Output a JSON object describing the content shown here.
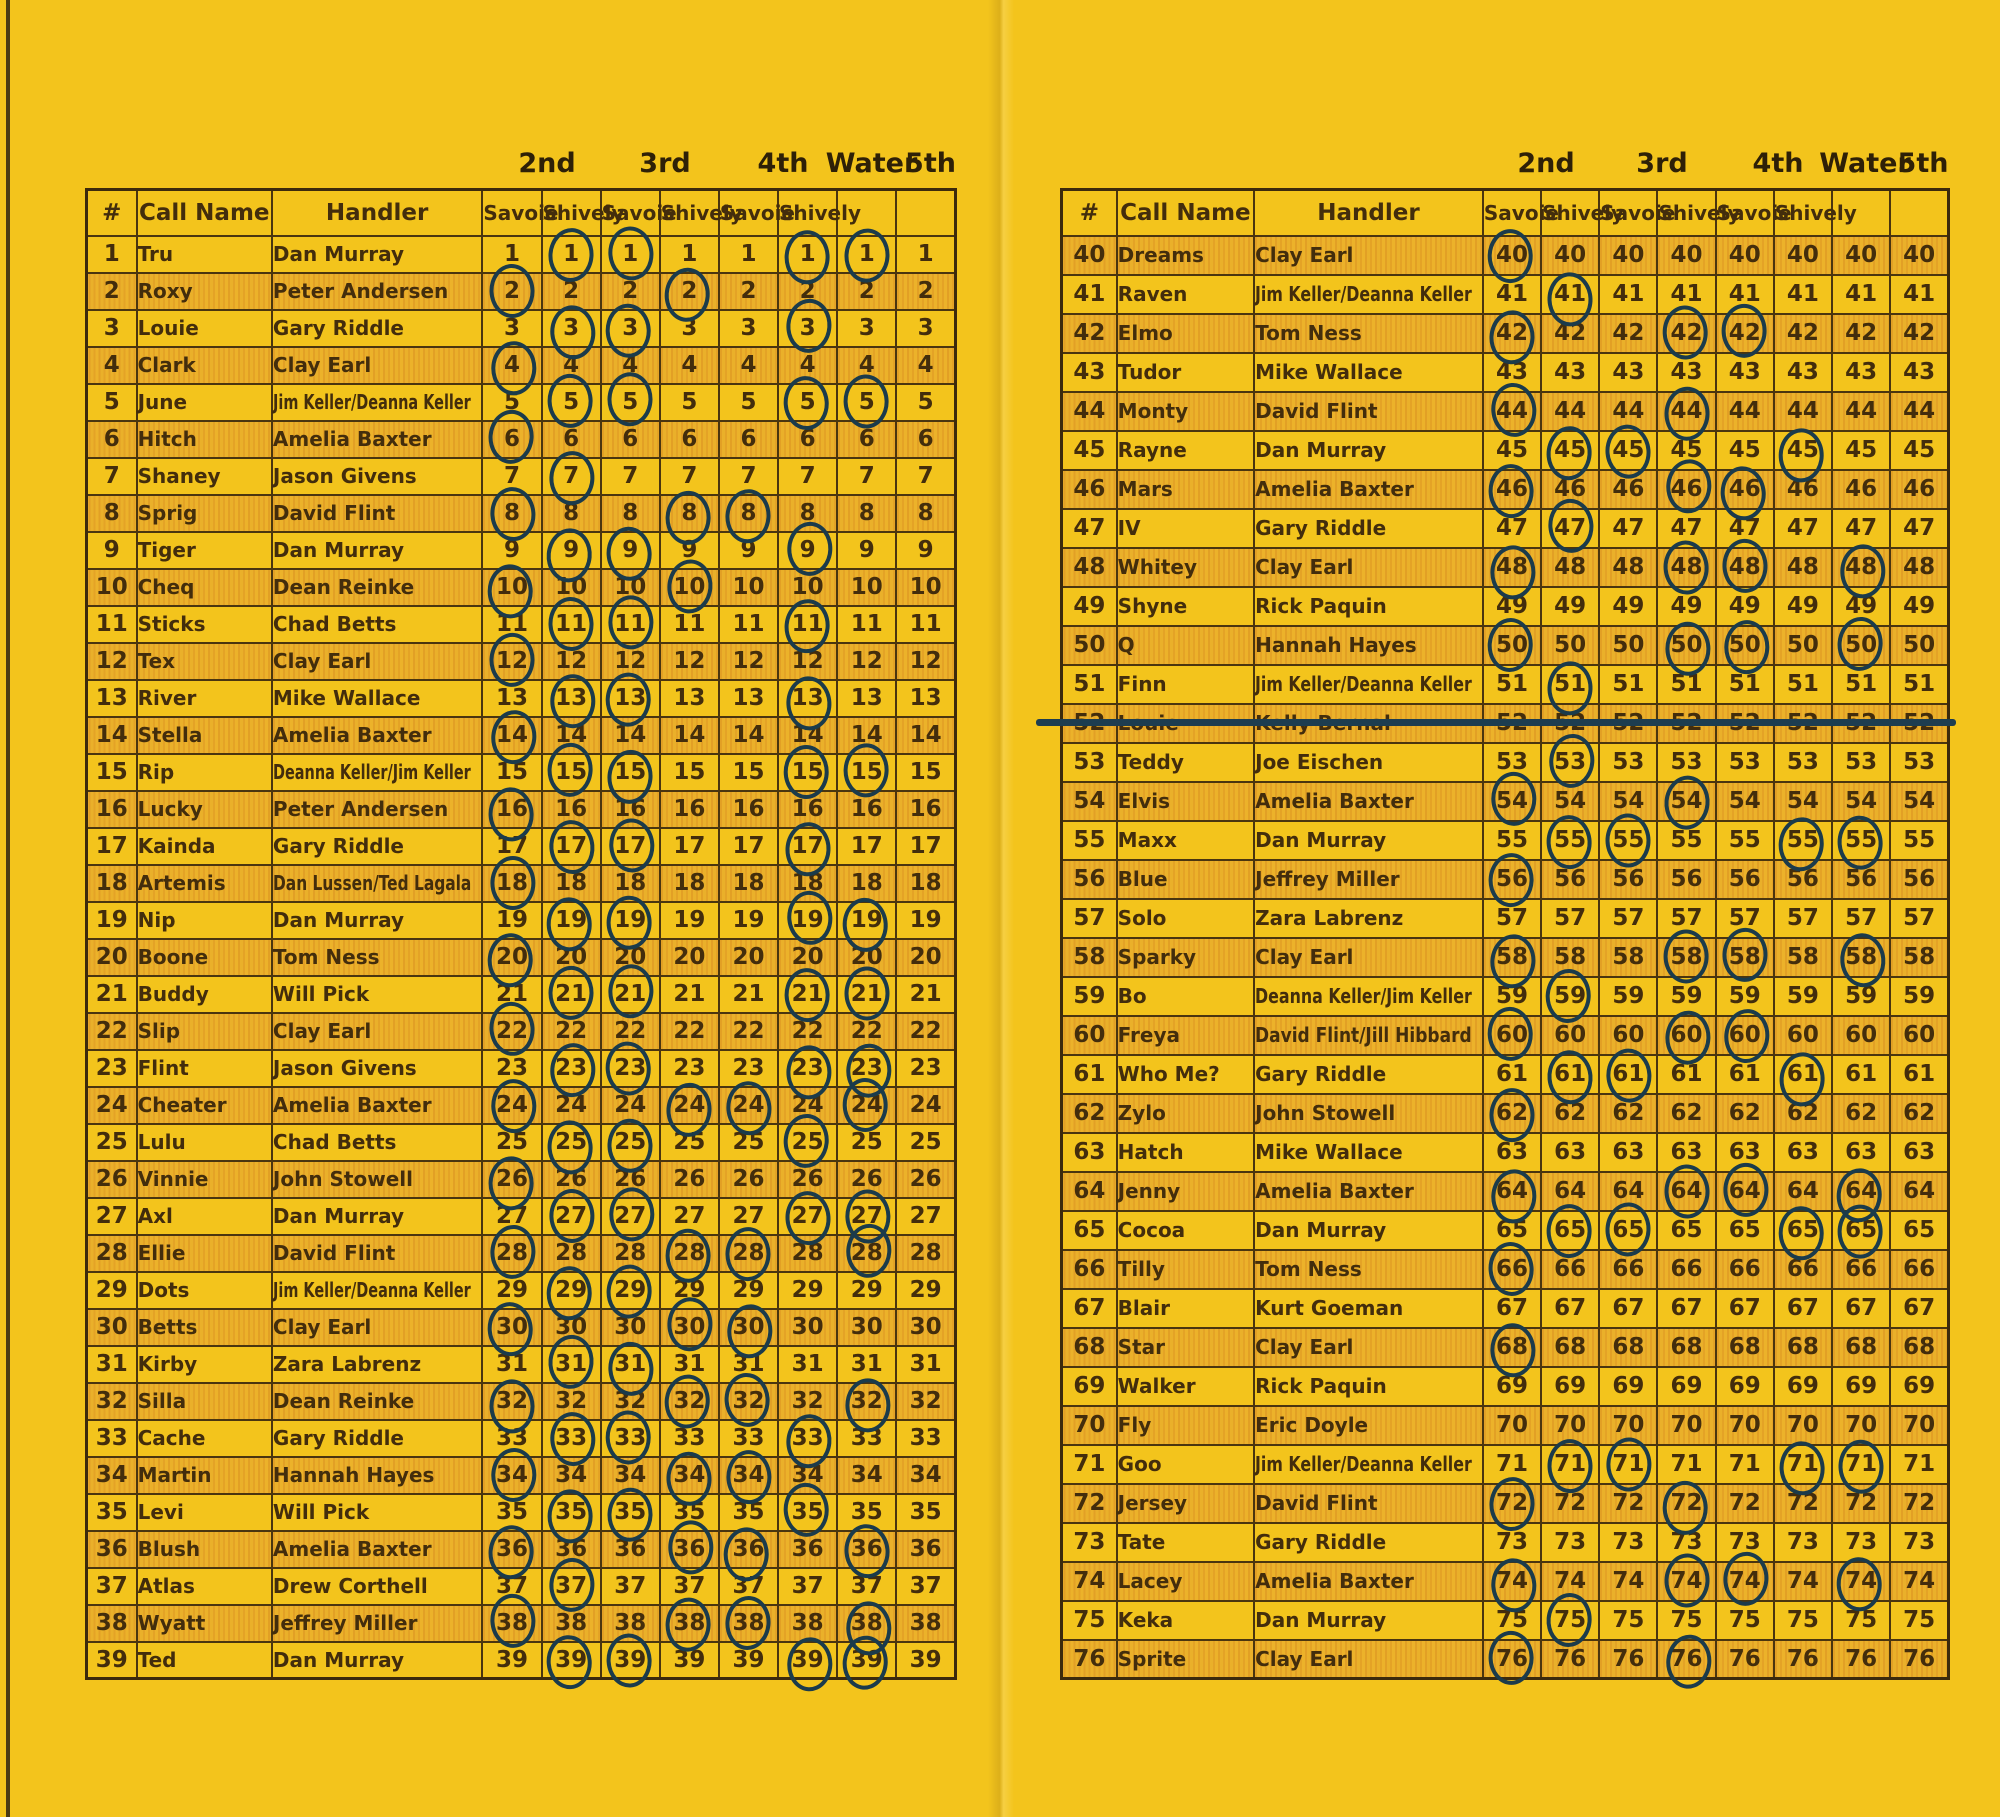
{
  "document_type": "dog trial running-order scoresheet (two pages of a yellow booklet)",
  "colors": {
    "paper": "#F3C41C",
    "stripe_row": "#EDB52B",
    "ink": "#432D0C",
    "pen_circle": "#1B3B4B",
    "grid_line": "#4A350F"
  },
  "round_labels": [
    "2nd",
    "3rd",
    "4th",
    "Water",
    "5th"
  ],
  "column_headers": {
    "num": "#",
    "call_name": "Call Name",
    "handler": "Handler"
  },
  "judge_subheaders": [
    "Savoie",
    "Shively",
    "Savoie",
    "Shively",
    "Savoie",
    "Shively",
    "",
    ""
  ],
  "score_column_keys": [
    "2nd-savoie",
    "2nd-shively",
    "3rd-savoie",
    "3rd-shively",
    "4th-savoie",
    "4th-shively",
    "water",
    "5th"
  ],
  "note": "every score cell shows the dog's running number; 'circles' lists the score-column indexes circled in pen; row 52 is crossed out",
  "pages": [
    {
      "name": "left",
      "rows": [
        {
          "num": 1,
          "call": "Tru",
          "handler": "Dan Murray",
          "circles": [
            1,
            2,
            5,
            6
          ]
        },
        {
          "num": 2,
          "call": "Roxy",
          "handler": "Peter Andersen",
          "circles": [
            0,
            3
          ]
        },
        {
          "num": 3,
          "call": "Louie",
          "handler": "Gary Riddle",
          "circles": [
            1,
            2,
            5
          ]
        },
        {
          "num": 4,
          "call": "Clark",
          "handler": "Clay Earl",
          "circles": [
            0
          ]
        },
        {
          "num": 5,
          "call": "June",
          "handler": "Jim Keller/Deanna Keller",
          "circles": [
            1,
            2,
            5,
            6
          ]
        },
        {
          "num": 6,
          "call": "Hitch",
          "handler": "Amelia Baxter",
          "circles": [
            0
          ]
        },
        {
          "num": 7,
          "call": "Shaney",
          "handler": "Jason Givens",
          "circles": [
            1
          ]
        },
        {
          "num": 8,
          "call": "Sprig",
          "handler": "David Flint",
          "circles": [
            0,
            3,
            4
          ]
        },
        {
          "num": 9,
          "call": "Tiger",
          "handler": "Dan Murray",
          "circles": [
            1,
            2,
            5
          ]
        },
        {
          "num": 10,
          "call": "Cheq",
          "handler": "Dean Reinke",
          "circles": [
            0,
            3
          ]
        },
        {
          "num": 11,
          "call": "Sticks",
          "handler": "Chad Betts",
          "circles": [
            1,
            2,
            5
          ]
        },
        {
          "num": 12,
          "call": "Tex",
          "handler": "Clay Earl",
          "circles": [
            0
          ]
        },
        {
          "num": 13,
          "call": "River",
          "handler": "Mike Wallace",
          "circles": [
            1,
            2,
            5
          ]
        },
        {
          "num": 14,
          "call": "Stella",
          "handler": "Amelia Baxter",
          "circles": [
            0
          ]
        },
        {
          "num": 15,
          "call": "Rip",
          "handler": "Deanna Keller/Jim Keller",
          "circles": [
            1,
            2,
            5,
            6
          ]
        },
        {
          "num": 16,
          "call": "Lucky",
          "handler": "Peter Andersen",
          "circles": [
            0
          ]
        },
        {
          "num": 17,
          "call": "Kainda",
          "handler": "Gary Riddle",
          "circles": [
            1,
            2,
            5
          ]
        },
        {
          "num": 18,
          "call": "Artemis",
          "handler": "Dan Lussen/Ted Lagala",
          "circles": [
            0
          ]
        },
        {
          "num": 19,
          "call": "Nip",
          "handler": "Dan Murray",
          "circles": [
            1,
            2,
            5,
            6
          ]
        },
        {
          "num": 20,
          "call": "Boone",
          "handler": "Tom Ness",
          "circles": [
            0
          ]
        },
        {
          "num": 21,
          "call": "Buddy",
          "handler": "Will Pick",
          "circles": [
            1,
            2,
            5,
            6
          ]
        },
        {
          "num": 22,
          "call": "Slip",
          "handler": "Clay Earl",
          "circles": [
            0
          ]
        },
        {
          "num": 23,
          "call": "Flint",
          "handler": "Jason Givens",
          "circles": [
            1,
            2,
            5,
            6
          ]
        },
        {
          "num": 24,
          "call": "Cheater",
          "handler": "Amelia Baxter",
          "circles": [
            0,
            3,
            4,
            6
          ]
        },
        {
          "num": 25,
          "call": "Lulu",
          "handler": "Chad Betts",
          "circles": [
            1,
            2,
            5
          ]
        },
        {
          "num": 26,
          "call": "Vinnie",
          "handler": "John Stowell",
          "circles": [
            0
          ]
        },
        {
          "num": 27,
          "call": "Axl",
          "handler": "Dan Murray",
          "circles": [
            1,
            2,
            5,
            6
          ]
        },
        {
          "num": 28,
          "call": "Ellie",
          "handler": "David Flint",
          "circles": [
            0,
            3,
            4,
            6
          ]
        },
        {
          "num": 29,
          "call": "Dots",
          "handler": "Jim Keller/Deanna Keller",
          "circles": [
            1,
            2
          ]
        },
        {
          "num": 30,
          "call": "Betts",
          "handler": "Clay Earl",
          "circles": [
            0,
            3,
            4
          ]
        },
        {
          "num": 31,
          "call": "Kirby",
          "handler": "Zara Labrenz",
          "circles": [
            1,
            2
          ]
        },
        {
          "num": 32,
          "call": "Silla",
          "handler": "Dean Reinke",
          "circles": [
            0,
            3,
            4,
            6
          ]
        },
        {
          "num": 33,
          "call": "Cache",
          "handler": "Gary Riddle",
          "circles": [
            1,
            2,
            5
          ]
        },
        {
          "num": 34,
          "call": "Martin",
          "handler": "Hannah Hayes",
          "circles": [
            0,
            3,
            4
          ]
        },
        {
          "num": 35,
          "call": "Levi",
          "handler": "Will Pick",
          "circles": [
            1,
            2,
            5
          ]
        },
        {
          "num": 36,
          "call": "Blush",
          "handler": "Amelia Baxter",
          "circles": [
            0,
            3,
            4,
            6
          ]
        },
        {
          "num": 37,
          "call": "Atlas",
          "handler": "Drew Corthell",
          "circles": [
            1
          ]
        },
        {
          "num": 38,
          "call": "Wyatt",
          "handler": "Jeffrey Miller",
          "circles": [
            0,
            3,
            4,
            6
          ]
        },
        {
          "num": 39,
          "call": "Ted",
          "handler": "Dan Murray",
          "circles": [
            1,
            2,
            5,
            6
          ]
        }
      ]
    },
    {
      "name": "right",
      "rows": [
        {
          "num": 40,
          "call": "Dreams",
          "handler": "Clay Earl",
          "circles": [
            0
          ]
        },
        {
          "num": 41,
          "call": "Raven",
          "handler": "Jim Keller/Deanna Keller",
          "circles": [
            1
          ]
        },
        {
          "num": 42,
          "call": "Elmo",
          "handler": "Tom Ness",
          "circles": [
            0,
            3,
            4
          ]
        },
        {
          "num": 43,
          "call": "Tudor",
          "handler": "Mike Wallace",
          "circles": []
        },
        {
          "num": 44,
          "call": "Monty",
          "handler": "David Flint",
          "circles": [
            0,
            3
          ]
        },
        {
          "num": 45,
          "call": "Rayne",
          "handler": "Dan Murray",
          "circles": [
            1,
            2,
            5
          ]
        },
        {
          "num": 46,
          "call": "Mars",
          "handler": "Amelia Baxter",
          "circles": [
            0,
            3,
            4
          ]
        },
        {
          "num": 47,
          "call": "IV",
          "handler": "Gary Riddle",
          "circles": [
            1
          ]
        },
        {
          "num": 48,
          "call": "Whitey",
          "handler": "Clay Earl",
          "circles": [
            0,
            3,
            4,
            6
          ]
        },
        {
          "num": 49,
          "call": "Shyne",
          "handler": "Rick Paquin",
          "circles": []
        },
        {
          "num": 50,
          "call": "Q",
          "handler": "Hannah Hayes",
          "circles": [
            0,
            3,
            4,
            6
          ]
        },
        {
          "num": 51,
          "call": "Finn",
          "handler": "Jim Keller/Deanna Keller",
          "circles": [
            1
          ]
        },
        {
          "num": 52,
          "call": "Louie",
          "handler": "Kelly Bernal",
          "circles": [],
          "struck": true
        },
        {
          "num": 53,
          "call": "Teddy",
          "handler": "Joe Eischen",
          "circles": [
            1
          ]
        },
        {
          "num": 54,
          "call": "Elvis",
          "handler": "Amelia Baxter",
          "circles": [
            0,
            3
          ]
        },
        {
          "num": 55,
          "call": "Maxx",
          "handler": "Dan Murray",
          "circles": [
            1,
            2,
            5,
            6
          ]
        },
        {
          "num": 56,
          "call": "Blue",
          "handler": "Jeffrey Miller",
          "circles": [
            0
          ]
        },
        {
          "num": 57,
          "call": "Solo",
          "handler": "Zara Labrenz",
          "circles": []
        },
        {
          "num": 58,
          "call": "Sparky",
          "handler": "Clay Earl",
          "circles": [
            0,
            3,
            4,
            6
          ]
        },
        {
          "num": 59,
          "call": "Bo",
          "handler": "Deanna Keller/Jim Keller",
          "circles": [
            1
          ]
        },
        {
          "num": 60,
          "call": "Freya",
          "handler": "David Flint/Jill Hibbard",
          "circles": [
            0,
            3,
            4
          ]
        },
        {
          "num": 61,
          "call": "Who Me?",
          "handler": "Gary Riddle",
          "circles": [
            1,
            2,
            5
          ]
        },
        {
          "num": 62,
          "call": "Zylo",
          "handler": "John Stowell",
          "circles": [
            0
          ]
        },
        {
          "num": 63,
          "call": "Hatch",
          "handler": "Mike Wallace",
          "circles": []
        },
        {
          "num": 64,
          "call": "Jenny",
          "handler": "Amelia Baxter",
          "circles": [
            0,
            3,
            4,
            6
          ]
        },
        {
          "num": 65,
          "call": "Cocoa",
          "handler": "Dan Murray",
          "circles": [
            1,
            2,
            5,
            6
          ]
        },
        {
          "num": 66,
          "call": "Tilly",
          "handler": "Tom Ness",
          "circles": [
            0
          ]
        },
        {
          "num": 67,
          "call": "Blair",
          "handler": "Kurt Goeman",
          "circles": []
        },
        {
          "num": 68,
          "call": "Star",
          "handler": "Clay Earl",
          "circles": [
            0
          ]
        },
        {
          "num": 69,
          "call": "Walker",
          "handler": "Rick Paquin",
          "circles": []
        },
        {
          "num": 70,
          "call": "Fly",
          "handler": "Eric Doyle",
          "circles": []
        },
        {
          "num": 71,
          "call": "Goo",
          "handler": "Jim Keller/Deanna Keller",
          "circles": [
            1,
            2,
            5,
            6
          ]
        },
        {
          "num": 72,
          "call": "Jersey",
          "handler": "David Flint",
          "circles": [
            0,
            3
          ]
        },
        {
          "num": 73,
          "call": "Tate",
          "handler": "Gary Riddle",
          "circles": []
        },
        {
          "num": 74,
          "call": "Lacey",
          "handler": "Amelia Baxter",
          "circles": [
            0,
            3,
            4,
            6
          ]
        },
        {
          "num": 75,
          "call": "Keka",
          "handler": "Dan Murray",
          "circles": [
            1
          ]
        },
        {
          "num": 76,
          "call": "Sprite",
          "handler": "Clay Earl",
          "circles": [
            0,
            3
          ]
        }
      ]
    }
  ]
}
